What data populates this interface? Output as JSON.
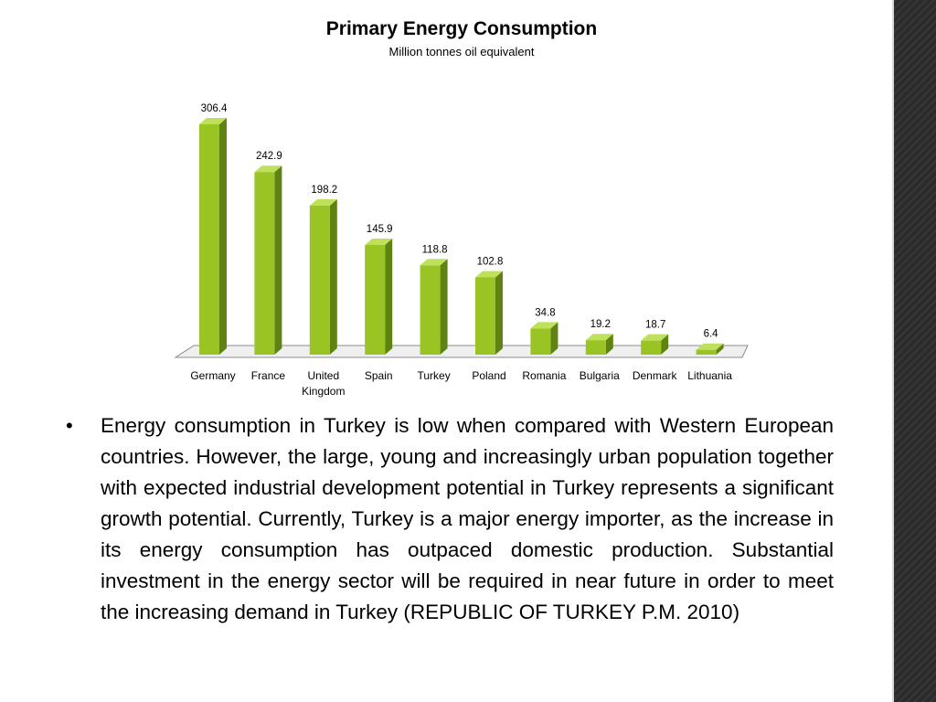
{
  "chart_data": {
    "type": "bar",
    "title": "Primary Energy Consumption",
    "subtitle": "Million tonnes oil equivalent",
    "categories": [
      "Germany",
      "France",
      "United Kingdom",
      "Spain",
      "Turkey",
      "Poland",
      "Romania",
      "Bulgaria",
      "Denmark",
      "Lithuania"
    ],
    "category_lines": [
      [
        "Germany"
      ],
      [
        "France"
      ],
      [
        "United",
        "Kingdom"
      ],
      [
        "Spain"
      ],
      [
        "Turkey"
      ],
      [
        "Poland"
      ],
      [
        "Romania"
      ],
      [
        "Bulgaria"
      ],
      [
        "Denmark"
      ],
      [
        "Lithuania"
      ]
    ],
    "values": [
      306.4,
      242.9,
      198.2,
      145.9,
      118.8,
      102.8,
      34.8,
      19.2,
      18.7,
      6.4
    ],
    "value_labels": [
      "306.4",
      "242.9",
      "198.2",
      "145.9",
      "118.8",
      "102.8",
      "34.8",
      "19.2",
      "18.7",
      "6.4"
    ],
    "xlabel": "",
    "ylabel": "",
    "ylim": [
      0,
      306.4
    ],
    "grid": false,
    "legend": "none",
    "bar_style": "3d",
    "colors": {
      "bar_front": "#99c423",
      "bar_side": "#5e8312",
      "bar_top": "#bfe05a",
      "floor": "#efefef",
      "floor_edge": "#8c8c8c"
    }
  },
  "body": {
    "bullet": "•",
    "text": "Energy consumption in Turkey is low when compared with Western European countries. However, the large,  young and increasingly urban population together with expected industrial development potential in Turkey  represents a significant growth potential. Currently, Turkey is a major energy importer, as the increase in its energy consumption has outpaced domestic production. Substantial investment in the energy sector will be required in near future in order to meet the increasing demand in Turkey (REPUBLIC OF TURKEY P.M. 2010)"
  }
}
